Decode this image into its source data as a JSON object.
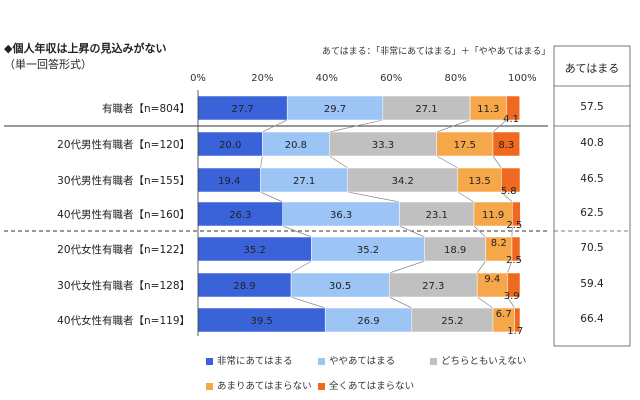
{
  "title_line1": "◆個人年収は上昇の見込みがない",
  "title_line2": "（単一回答形式）",
  "definition_note": "あてはまる：「非常にあてはまる」＋「ややあてはまる」",
  "summary_header": "あてはまる",
  "axis_ticks": [
    "0%",
    "20%",
    "40%",
    "60%",
    "80%",
    "100%"
  ],
  "chart_data": {
    "type": "bar",
    "orientation": "horizontal",
    "stacked": true,
    "xlim": [
      0,
      100
    ],
    "categories": [
      "有職者【n=804】",
      "20代男性有職者【n=120】",
      "30代男性有職者【n=155】",
      "40代男性有職者【n=160】",
      "20代女性有職者【n=122】",
      "30代女性有職者【n=128】",
      "40代女性有職者【n=119】"
    ],
    "series": [
      {
        "name": "非常にあてはまる",
        "color": "#3a63d9",
        "values": [
          27.7,
          20.0,
          19.4,
          26.3,
          35.2,
          28.9,
          39.5
        ]
      },
      {
        "name": "ややあてはまる",
        "color": "#9cc4f5",
        "values": [
          29.7,
          20.8,
          27.1,
          36.3,
          35.2,
          30.5,
          26.9
        ]
      },
      {
        "name": "どちらともいえない",
        "color": "#c0c0c0",
        "values": [
          27.1,
          33.3,
          34.2,
          23.1,
          18.9,
          27.3,
          25.2
        ]
      },
      {
        "name": "あまりあてはまらない",
        "color": "#f5a74a",
        "values": [
          11.3,
          17.5,
          13.5,
          11.9,
          8.2,
          9.4,
          6.7
        ]
      },
      {
        "name": "全くあてはまらない",
        "color": "#ef6a1f",
        "values": [
          4.1,
          8.3,
          5.8,
          2.5,
          2.5,
          3.9,
          1.7
        ]
      }
    ],
    "value_labels": [
      [
        "27.7",
        "29.7",
        "27.1",
        "11.3",
        "4.1"
      ],
      [
        "20.0",
        "20.8",
        "33.3",
        "17.5",
        "8.3"
      ],
      [
        "19.4",
        "27.1",
        "34.2",
        "13.5",
        "5.8"
      ],
      [
        "26.3",
        "36.3",
        "23.1",
        "11.9",
        "2.5"
      ],
      [
        "35.2",
        "35.2",
        "18.9",
        "8.2",
        "2.5"
      ],
      [
        "28.9",
        "30.5",
        "27.3",
        "9.4",
        "3.9"
      ],
      [
        "39.5",
        "26.9",
        "25.2",
        "6.7",
        "1.7"
      ]
    ],
    "summary_values": [
      "57.5",
      "40.8",
      "46.5",
      "62.5",
      "70.5",
      "59.4",
      "66.4"
    ],
    "legend_position": "bottom",
    "grid": false
  }
}
